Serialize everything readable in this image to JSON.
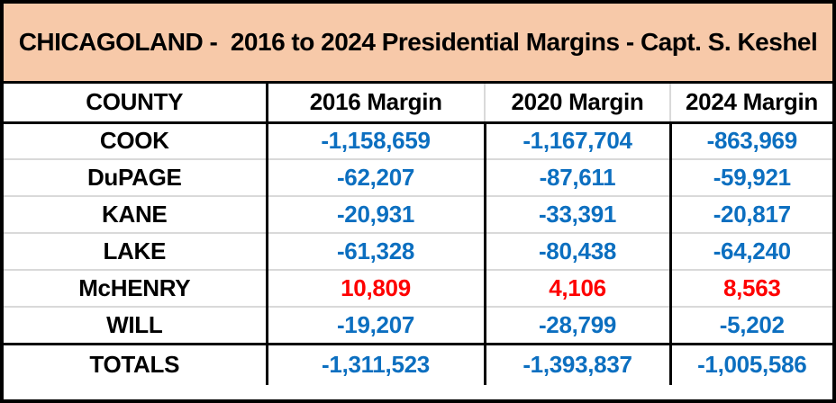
{
  "title": "CHICAGOLAND -  2016 to 2024 Presidential Margins - Capt. S. Keshel",
  "colors": {
    "title_bg": "#F7C9A9",
    "blue": "#0C6FC0",
    "red": "#FE0000",
    "border": "#000000",
    "grid_line": "#D9D9D9"
  },
  "table": {
    "columns": [
      "COUNTY",
      "2016 Margin",
      "2020 Margin",
      "2024 Margin"
    ],
    "rows": [
      {
        "county": "COOK",
        "m2016": "-1,158,659",
        "m2020": "-1,167,704",
        "m2024": "-863,969",
        "color": "blue"
      },
      {
        "county": "DuPAGE",
        "m2016": "-62,207",
        "m2020": "-87,611",
        "m2024": "-59,921",
        "color": "blue"
      },
      {
        "county": "KANE",
        "m2016": "-20,931",
        "m2020": "-33,391",
        "m2024": "-20,817",
        "color": "blue"
      },
      {
        "county": "LAKE",
        "m2016": "-61,328",
        "m2020": "-80,438",
        "m2024": "-64,240",
        "color": "blue"
      },
      {
        "county": "McHENRY",
        "m2016": "10,809",
        "m2020": "4,106",
        "m2024": "8,563",
        "color": "red"
      },
      {
        "county": "WILL",
        "m2016": "-19,207",
        "m2020": "-28,799",
        "m2024": "-5,202",
        "color": "blue"
      }
    ],
    "totals": {
      "label": "TOTALS",
      "m2016": "-1,311,523",
      "m2020": "-1,393,837",
      "m2024": "-1,005,586",
      "color": "blue"
    }
  },
  "chart_data": {
    "type": "table",
    "title": "CHICAGOLAND - 2016 to 2024 Presidential Margins - Capt. S. Keshel",
    "columns": [
      "COUNTY",
      "2016 Margin",
      "2020 Margin",
      "2024 Margin"
    ],
    "rows": [
      [
        "COOK",
        -1158659,
        -1167704,
        -863969
      ],
      [
        "DuPAGE",
        -62207,
        -87611,
        -59921
      ],
      [
        "KANE",
        -20931,
        -33391,
        -20817
      ],
      [
        "LAKE",
        -61328,
        -80438,
        -64240
      ],
      [
        "McHENRY",
        10809,
        4106,
        8563
      ],
      [
        "WILL",
        -19207,
        -28799,
        -5202
      ],
      [
        "TOTALS",
        -1311523,
        -1393837,
        -1005586
      ]
    ],
    "notes": "Negative margins rendered in blue, positive margins rendered in red"
  }
}
